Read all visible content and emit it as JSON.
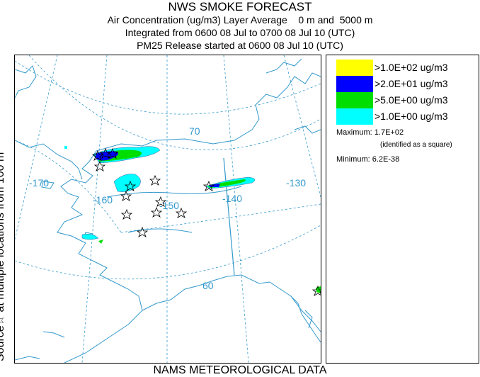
{
  "header": {
    "title": "NWS SMOKE FORECAST",
    "line1": "Air Concentration (ug/m3) Layer Average    0 m and  5000 m",
    "line2": "Integrated from 0600 08 Jul to 0700 08 Jul 10 (UTC)",
    "line3": "PM25 Release started at 0600 08 Jul 10 (UTC)"
  },
  "side_label": "Source☆ at multiple locations   from   100 m",
  "footer": "NAMS METEOROLOGICAL DATA",
  "legend": {
    "items": [
      {
        "label": ">1.0E+02 ug/m3",
        "color": "#ffff00"
      },
      {
        "label": ">2.0E+01 ug/m3",
        "color": "#0000ff"
      },
      {
        "label": ">5.0E+00 ug/m3",
        "color": "#00dd00"
      },
      {
        "label": ">1.0E+00 ug/m3",
        "color": "#00ffff"
      }
    ],
    "maximum": "Maximum: 1.7E+02",
    "maximum_note": "(identified as a square)",
    "minimum": "Minimum: 6.2E-38"
  },
  "map": {
    "graticule_labels": {
      "lat70": "70",
      "lat60": "60",
      "lon170": "-170",
      "lon160": "-160",
      "lon150": "-150",
      "lon140": "-140",
      "lon130": "-130"
    },
    "colors": {
      "coast": "#3399cc",
      "graticule": "#3399cc",
      "grid_label": "#3399cc"
    }
  }
}
